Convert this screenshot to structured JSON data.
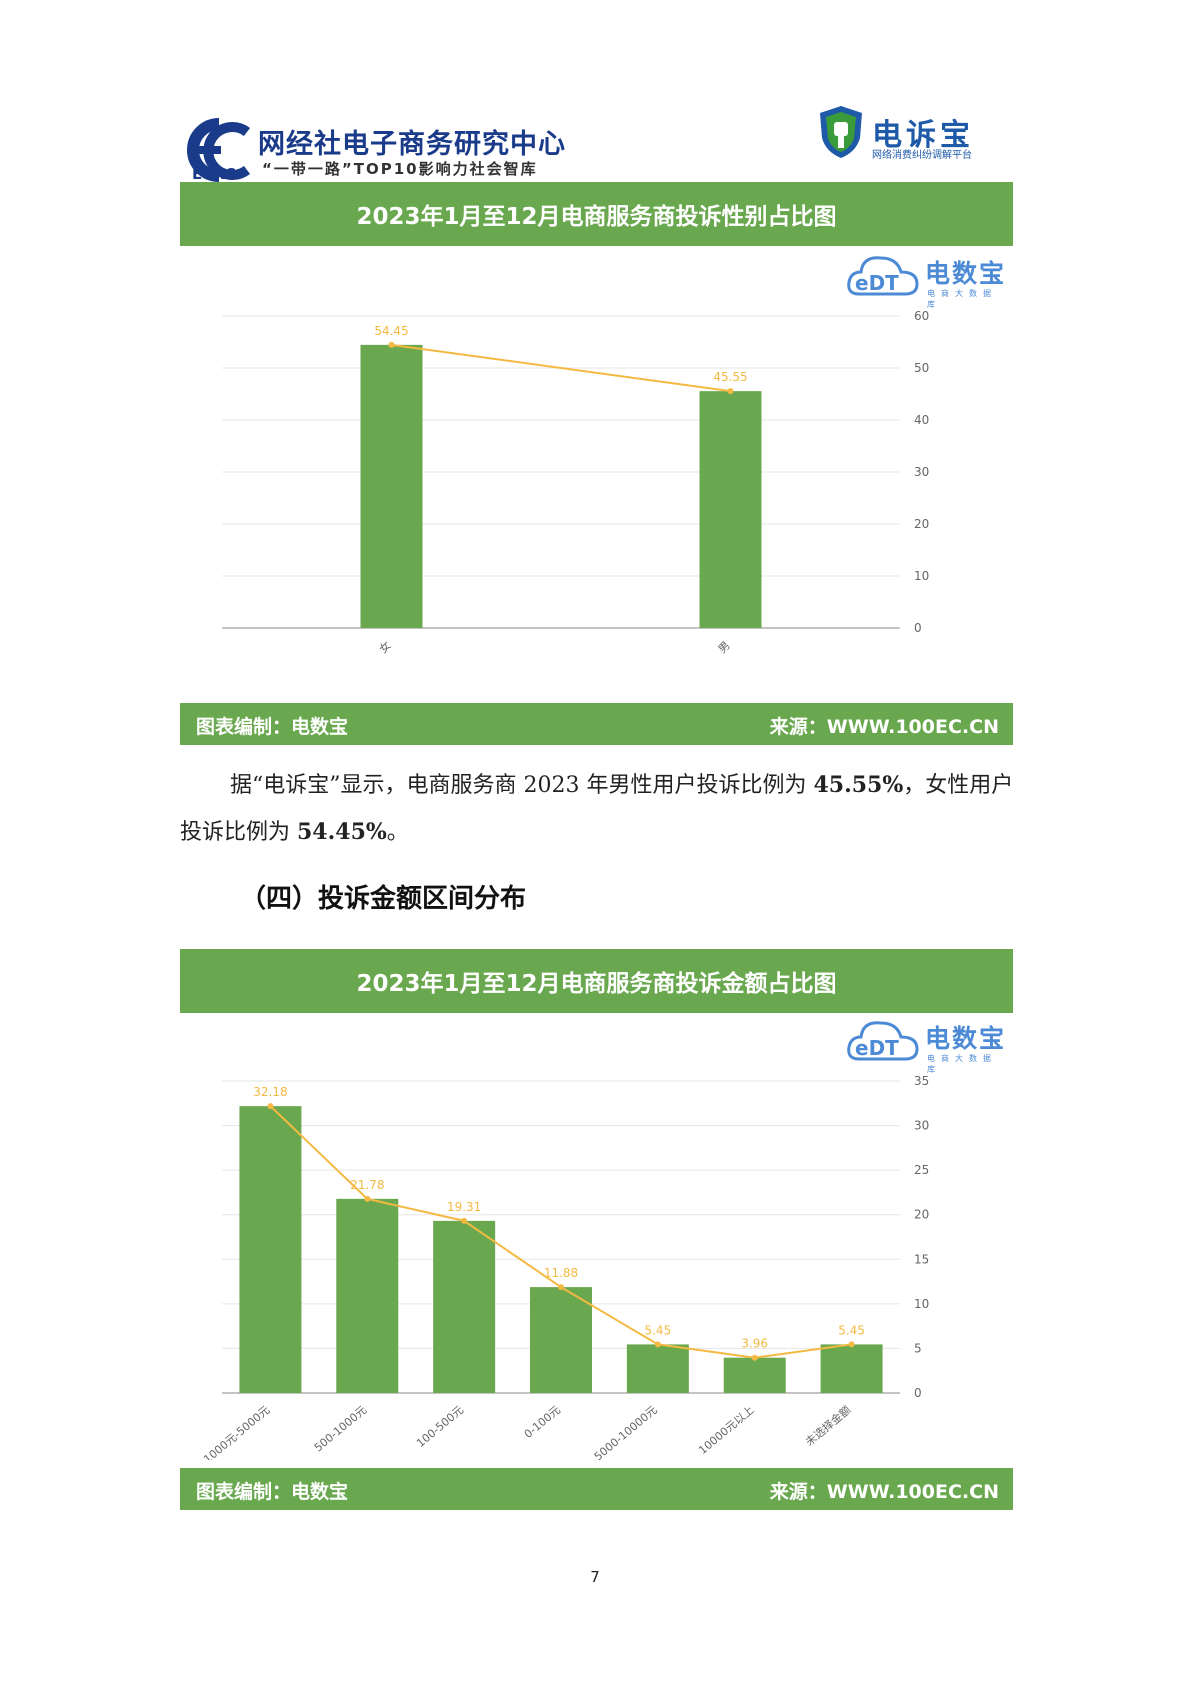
{
  "header": {
    "org_name": "网经社电子商务研究中心",
    "org_abbr": "ECRC",
    "org_slogan": "“一带一路”TOP10影响力社会智库",
    "platform_name": "电诉宝",
    "platform_subtitle": "网络消费纠纷调解平台"
  },
  "watermark": {
    "name": "电数宝",
    "sub": "电商大数据库",
    "logo_text": "eDT"
  },
  "chart1": {
    "title": "2023年1月至12月电商服务商投诉性别占比图",
    "footer_left": "图表编制：电数宝",
    "footer_right": "来源：WWW.100EC.CN"
  },
  "chart2": {
    "title": "2023年1月至12月电商服务商投诉金额占比图",
    "footer_left": "图表编制：电数宝",
    "footer_right": "来源：WWW.100EC.CN"
  },
  "paragraph": {
    "part1": "据“电诉宝”显示，电商服务商 2023 年男性用户投诉比例为 ",
    "male_pct": "45.55%",
    "part2": "，女性用户投诉比例为 ",
    "female_pct": "54.45%",
    "part3": "。"
  },
  "section_heading": "（四）投诉金额区间分布",
  "page_number": "7",
  "colors": {
    "bar": "#6aa84f",
    "line": "#f4b942",
    "label": "#f4b942",
    "panel": "#6aa84f"
  },
  "chart_data": [
    {
      "type": "bar",
      "categories": [
        "女",
        "男"
      ],
      "values": [
        54.45,
        45.55
      ],
      "line_overlay": true,
      "ylim": [
        0,
        60
      ],
      "yticks": [
        0,
        10,
        20,
        30,
        40,
        50,
        60
      ],
      "axis_side": "right",
      "grid": true
    },
    {
      "type": "bar",
      "categories": [
        "1000元-5000元",
        "500-1000元",
        "100-500元",
        "0-100元",
        "5000-10000元",
        "10000元以上",
        "未选择金额"
      ],
      "values": [
        32.18,
        21.78,
        19.31,
        11.88,
        5.45,
        3.96,
        5.45
      ],
      "line_overlay": true,
      "ylim": [
        0,
        35
      ],
      "yticks": [
        0,
        5,
        10,
        15,
        20,
        25,
        30,
        35
      ],
      "axis_side": "right",
      "grid": true
    }
  ]
}
